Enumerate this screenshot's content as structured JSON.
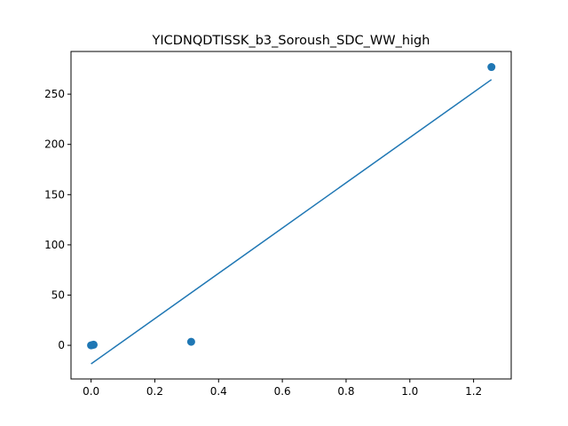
{
  "chart_data": {
    "type": "scatter",
    "title": "YICDNQDTISSK_b3_Soroush_SDC_WW_high",
    "xlabel": "",
    "ylabel": "",
    "xlim": [
      -0.063,
      1.318
    ],
    "ylim": [
      -33.5,
      292.5
    ],
    "grid": false,
    "color": "#1f77b4",
    "x_ticks": [
      {
        "value": 0.0,
        "label": "0.0"
      },
      {
        "value": 0.2,
        "label": "0.2"
      },
      {
        "value": 0.4,
        "label": "0.4"
      },
      {
        "value": 0.6,
        "label": "0.6"
      },
      {
        "value": 0.8,
        "label": "0.8"
      },
      {
        "value": 1.0,
        "label": "1.0"
      },
      {
        "value": 1.2,
        "label": "1.2"
      }
    ],
    "y_ticks": [
      {
        "value": 0,
        "label": "0"
      },
      {
        "value": 50,
        "label": "50"
      },
      {
        "value": 100,
        "label": "100"
      },
      {
        "value": 150,
        "label": "150"
      },
      {
        "value": 200,
        "label": "200"
      },
      {
        "value": 250,
        "label": "250"
      }
    ],
    "series": [
      {
        "type": "scatter",
        "points": [
          {
            "x": 0.0,
            "y": 0.0
          },
          {
            "x": 0.004,
            "y": 0.3
          },
          {
            "x": 0.008,
            "y": 0.6
          },
          {
            "x": 0.314,
            "y": 3.5
          },
          {
            "x": 1.256,
            "y": 277.0
          }
        ]
      },
      {
        "type": "line",
        "points": [
          {
            "x": 0.0,
            "y": -18.5
          },
          {
            "x": 1.256,
            "y": 264.5
          }
        ]
      }
    ]
  }
}
